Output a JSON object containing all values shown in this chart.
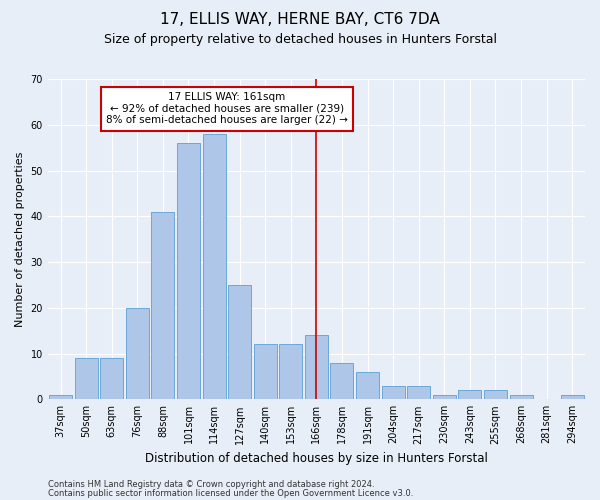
{
  "title": "17, ELLIS WAY, HERNE BAY, CT6 7DA",
  "subtitle": "Size of property relative to detached houses in Hunters Forstal",
  "xlabel": "Distribution of detached houses by size in Hunters Forstal",
  "ylabel": "Number of detached properties",
  "bin_labels": [
    "37sqm",
    "50sqm",
    "63sqm",
    "76sqm",
    "88sqm",
    "101sqm",
    "114sqm",
    "127sqm",
    "140sqm",
    "153sqm",
    "166sqm",
    "178sqm",
    "191sqm",
    "204sqm",
    "217sqm",
    "230sqm",
    "243sqm",
    "255sqm",
    "268sqm",
    "281sqm",
    "294sqm"
  ],
  "bar_heights": [
    1,
    9,
    9,
    20,
    41,
    56,
    58,
    25,
    12,
    12,
    14,
    8,
    6,
    3,
    3,
    1,
    2,
    2,
    1,
    0,
    1
  ],
  "bar_color": "#aec6e8",
  "bar_edgecolor": "#5a9fd4",
  "background_color": "#e8eef8",
  "grid_color": "#ffffff",
  "red_line_bin": 10,
  "annotation_text": "17 ELLIS WAY: 161sqm\n← 92% of detached houses are smaller (239)\n8% of semi-detached houses are larger (22) →",
  "annotation_box_color": "#ffffff",
  "annotation_box_edgecolor": "#cc0000",
  "footnote1": "Contains HM Land Registry data © Crown copyright and database right 2024.",
  "footnote2": "Contains public sector information licensed under the Open Government Licence v3.0.",
  "ylim": [
    0,
    70
  ],
  "yticks": [
    0,
    10,
    20,
    30,
    40,
    50,
    60,
    70
  ],
  "title_fontsize": 11,
  "subtitle_fontsize": 9,
  "axis_fontsize": 8,
  "tick_fontsize": 7,
  "annotation_fontsize": 7.5,
  "footnote_fontsize": 6
}
